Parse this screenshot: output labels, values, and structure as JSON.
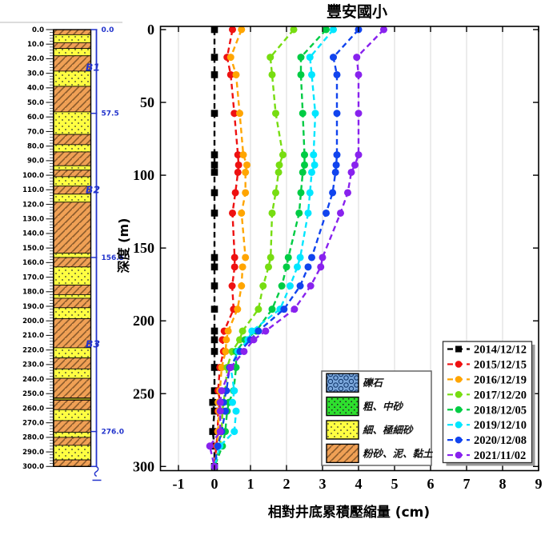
{
  "title": "豐安國小",
  "chart_data": {
    "type": "line",
    "title": "豐安國小",
    "xlabel": "相對井底累積壓縮量  (cm)",
    "ylabel": "深度 (m)",
    "xlim": [
      -1.5,
      9
    ],
    "depth_range_m": [
      0,
      300
    ],
    "xticks": [
      -1,
      0,
      1,
      2,
      3,
      4,
      5,
      6,
      7,
      8,
      9
    ],
    "yticks": [
      0,
      50,
      100,
      150,
      200,
      250,
      300
    ],
    "grid": "vertical-only",
    "legend_position": "lower-right",
    "depths_m": [
      0,
      19,
      31,
      57.5,
      86,
      93,
      98,
      112,
      126,
      156.5,
      163,
      176,
      192,
      207,
      213,
      221,
      232,
      248,
      256,
      262,
      276,
      286,
      300
    ],
    "series": [
      {
        "name": "2014/12/12",
        "color": "#000000",
        "marker": "square",
        "values": [
          0,
          0,
          0,
          0,
          0,
          0,
          0,
          0,
          0,
          0,
          0,
          0,
          0,
          0,
          0,
          0,
          0,
          0,
          -0.05,
          0,
          -0.05,
          0,
          0
        ]
      },
      {
        "name": "2015/12/15",
        "color": "#EE1111",
        "marker": "circle",
        "values": [
          0.5,
          0.35,
          0.45,
          0.55,
          0.65,
          0.67,
          0.65,
          0.58,
          0.5,
          0.56,
          0.56,
          0.49,
          0.53,
          0.27,
          0.22,
          0.25,
          0.15,
          0.1,
          0.16,
          0.1,
          0.09,
          0.05,
          0
        ]
      },
      {
        "name": "2016/12/19",
        "color": "#FFA500",
        "marker": "circle",
        "values": [
          0.75,
          0.45,
          0.6,
          0.7,
          0.8,
          0.9,
          0.86,
          0.86,
          0.75,
          0.86,
          0.78,
          0.75,
          0.64,
          0.38,
          0.33,
          0.31,
          0.2,
          0.15,
          0.1,
          0.12,
          0.1,
          0.08,
          0
        ]
      },
      {
        "name": "2017/12/20",
        "color": "#77DD11",
        "marker": "circle",
        "values": [
          2.2,
          1.55,
          1.6,
          1.7,
          1.9,
          1.8,
          1.78,
          1.7,
          1.6,
          1.56,
          1.5,
          1.35,
          1.22,
          0.78,
          0.7,
          0.49,
          0.35,
          0.3,
          0.25,
          0.22,
          0.2,
          0.15,
          0
        ]
      },
      {
        "name": "2018/12/05",
        "color": "#00CC44",
        "marker": "circle",
        "values": [
          3.1,
          2.4,
          2.4,
          2.45,
          2.5,
          2.5,
          2.45,
          2.4,
          2.35,
          2.05,
          2.0,
          1.87,
          1.6,
          1.16,
          0.85,
          0.6,
          0.6,
          0.53,
          0.4,
          0.35,
          0.3,
          0.22,
          0
        ]
      },
      {
        "name": "2019/12/10",
        "color": "#00E6FF",
        "marker": "circle",
        "values": [
          3.3,
          2.65,
          2.7,
          2.8,
          2.75,
          2.78,
          2.7,
          2.65,
          2.6,
          2.38,
          2.3,
          2.1,
          1.82,
          1.04,
          0.93,
          0.65,
          0.45,
          0.55,
          0.5,
          0.6,
          0.55,
          0.15,
          0
        ]
      },
      {
        "name": "2020/12/08",
        "color": "#1144EE",
        "marker": "circle",
        "values": [
          4.0,
          3.3,
          3.4,
          3.4,
          3.4,
          3.38,
          3.36,
          3.28,
          3.1,
          2.7,
          2.6,
          2.38,
          1.93,
          1.22,
          1.0,
          0.71,
          0.42,
          0.33,
          0.25,
          0.3,
          0.2,
          0.09,
          0
        ]
      },
      {
        "name": "2021/11/02",
        "color": "#8822EE",
        "marker": "circle",
        "values": [
          4.7,
          3.95,
          4.0,
          4.0,
          4.0,
          3.9,
          3.8,
          3.7,
          3.5,
          3.0,
          2.95,
          2.67,
          2.22,
          1.42,
          1.09,
          0.82,
          0.45,
          0.2,
          0.16,
          0.16,
          0.16,
          -0.13,
          0
        ]
      }
    ]
  },
  "legend_lithology": {
    "entries": [
      {
        "label": "礫石",
        "material": "gravel",
        "fill": "#7BA7DB"
      },
      {
        "label": "粗、中砂",
        "material": "coarse_sand",
        "fill": "#2EE02E"
      },
      {
        "label": "細、極細砂",
        "material": "fine_sand",
        "fill": "#FFFF42"
      },
      {
        "label": "粉砂、泥、黏土",
        "material": "silt_clay",
        "fill": "#F0A055"
      }
    ]
  },
  "borehole": {
    "ruler_labels": [
      "0.0",
      "10.0",
      "20.0",
      "30.0",
      "40.0",
      "50.0",
      "60.0",
      "70.0",
      "80.0",
      "90.0",
      "100.0",
      "110.0",
      "120.0",
      "130.0",
      "140.0",
      "150.0",
      "160.0",
      "170.0",
      "180.0",
      "190.0",
      "200.0",
      "210.0",
      "220.0",
      "230.0",
      "240.0",
      "250.0",
      "260.0",
      "270.0",
      "280.0",
      "290.0",
      "300.0"
    ],
    "layers": [
      {
        "from": 0,
        "to": 3.5,
        "type": "silt_clay"
      },
      {
        "from": 3.5,
        "to": 9,
        "type": "fine_sand"
      },
      {
        "from": 9,
        "to": 13,
        "type": "silt_clay"
      },
      {
        "from": 13,
        "to": 18,
        "type": "fine_sand"
      },
      {
        "from": 18,
        "to": 28.5,
        "type": "silt_clay"
      },
      {
        "from": 28.5,
        "to": 39,
        "type": "fine_sand"
      },
      {
        "from": 39,
        "to": 56.5,
        "type": "silt_clay"
      },
      {
        "from": 56.5,
        "to": 72,
        "type": "fine_sand"
      },
      {
        "from": 72,
        "to": 79,
        "type": "silt_clay"
      },
      {
        "from": 79,
        "to": 84,
        "type": "fine_sand"
      },
      {
        "from": 84,
        "to": 93.5,
        "type": "silt_clay"
      },
      {
        "from": 93.5,
        "to": 96.5,
        "type": "fine_sand"
      },
      {
        "from": 96.5,
        "to": 101,
        "type": "silt_clay"
      },
      {
        "from": 101,
        "to": 107.5,
        "type": "fine_sand"
      },
      {
        "from": 107.5,
        "to": 113,
        "type": "silt_clay"
      },
      {
        "from": 113,
        "to": 118.5,
        "type": "fine_sand"
      },
      {
        "from": 118.5,
        "to": 153.5,
        "type": "silt_clay"
      },
      {
        "from": 153.5,
        "to": 156.5,
        "type": "fine_sand"
      },
      {
        "from": 156.5,
        "to": 163,
        "type": "silt_clay"
      },
      {
        "from": 163,
        "to": 175.5,
        "type": "fine_sand"
      },
      {
        "from": 175.5,
        "to": 182,
        "type": "silt_clay"
      },
      {
        "from": 182,
        "to": 184.5,
        "type": "fine_sand"
      },
      {
        "from": 184.5,
        "to": 191,
        "type": "silt_clay"
      },
      {
        "from": 191,
        "to": 198.5,
        "type": "fine_sand"
      },
      {
        "from": 198.5,
        "to": 218.5,
        "type": "silt_clay"
      },
      {
        "from": 218.5,
        "to": 225.5,
        "type": "fine_sand"
      },
      {
        "from": 225.5,
        "to": 233,
        "type": "silt_clay"
      },
      {
        "from": 233,
        "to": 239.5,
        "type": "fine_sand"
      },
      {
        "from": 239.5,
        "to": 253,
        "type": "silt_clay"
      },
      {
        "from": 253,
        "to": 254.5,
        "type": "olive_seam"
      },
      {
        "from": 254.5,
        "to": 261,
        "type": "silt_clay"
      },
      {
        "from": 261,
        "to": 268.5,
        "type": "fine_sand"
      },
      {
        "from": 268.5,
        "to": 276.5,
        "type": "silt_clay"
      },
      {
        "from": 276.5,
        "to": 280,
        "type": "fine_sand"
      },
      {
        "from": 280,
        "to": 285.5,
        "type": "silt_clay"
      },
      {
        "from": 285.5,
        "to": 295.5,
        "type": "fine_sand"
      },
      {
        "from": 295.5,
        "to": 300,
        "type": "silt_clay"
      }
    ],
    "zone_markers": [
      {
        "label": "0.0",
        "depth": 0
      },
      {
        "label": "57.5",
        "depth": 57.5
      },
      {
        "label": "156.5",
        "depth": 156.5
      },
      {
        "label": "276.0",
        "depth": 276
      }
    ],
    "zones": [
      {
        "label": "B1",
        "mid_depth": 26
      },
      {
        "label": "B2",
        "mid_depth": 110
      },
      {
        "label": "B3",
        "mid_depth": 216
      }
    ]
  },
  "colors": {
    "grid": "#D9D9D9",
    "frame": "#000000",
    "bracket_blue": "#2233CC",
    "fine_sand": "#FFFF42",
    "silt_clay": "#F0A055",
    "silt_clay_hatch": "#8B5A2B",
    "gravel": "#7BA7DB",
    "coarse_sand": "#2EE02E",
    "olive_seam": "#8C8C1A"
  }
}
